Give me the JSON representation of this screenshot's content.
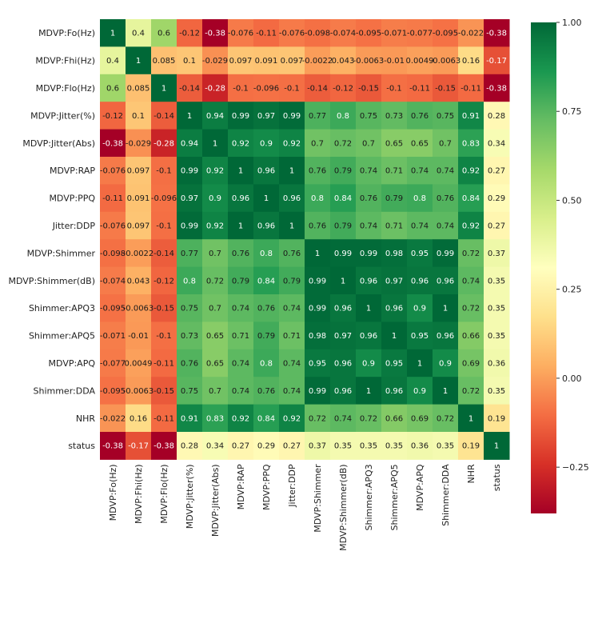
{
  "chart_data": {
    "type": "heatmap",
    "title": "",
    "xlabel": "",
    "ylabel": "",
    "colormap": "RdYlGn",
    "colormap_stops": [
      "#a50026",
      "#d73027",
      "#f46d43",
      "#fdae61",
      "#fee08b",
      "#ffffbf",
      "#d9ef8b",
      "#a6d96a",
      "#66bd63",
      "#1a9850",
      "#006837"
    ],
    "vmin": -0.38,
    "vmax": 1.0,
    "x_labels": [
      "MDVP:Fo(Hz)",
      "MDVP:Fhi(Hz)",
      "MDVP:Flo(Hz)",
      "MDVP:Jitter(%)",
      "MDVP:Jitter(Abs)",
      "MDVP:RAP",
      "MDVP:PPQ",
      "Jitter:DDP",
      "MDVP:Shimmer",
      "MDVP:Shimmer(dB)",
      "Shimmer:APQ3",
      "Shimmer:APQ5",
      "MDVP:APQ",
      "Shimmer:DDA",
      "NHR",
      "status"
    ],
    "y_labels": [
      "MDVP:Fo(Hz)",
      "MDVP:Fhi(Hz)",
      "MDVP:Flo(Hz)",
      "MDVP:Jitter(%)",
      "MDVP:Jitter(Abs)",
      "MDVP:RAP",
      "MDVP:PPQ",
      "Jitter:DDP",
      "MDVP:Shimmer",
      "MDVP:Shimmer(dB)",
      "Shimmer:APQ3",
      "Shimmer:APQ5",
      "MDVP:APQ",
      "Shimmer:DDA",
      "NHR",
      "status"
    ],
    "values": [
      [
        1,
        0.4,
        0.6,
        -0.12,
        -0.38,
        -0.076,
        -0.11,
        -0.076,
        -0.098,
        -0.074,
        -0.095,
        -0.071,
        -0.077,
        -0.095,
        -0.022,
        -0.38
      ],
      [
        0.4,
        1,
        0.085,
        0.1,
        -0.029,
        0.097,
        0.091,
        0.097,
        -0.0022,
        0.043,
        -0.0063,
        -0.01,
        0.0049,
        -0.0063,
        0.16,
        -0.17
      ],
      [
        0.6,
        0.085,
        1,
        -0.14,
        -0.28,
        -0.1,
        -0.096,
        -0.1,
        -0.14,
        -0.12,
        -0.15,
        -0.1,
        -0.11,
        -0.15,
        -0.11,
        -0.38
      ],
      [
        -0.12,
        0.1,
        -0.14,
        1,
        0.94,
        0.99,
        0.97,
        0.99,
        0.77,
        0.8,
        0.75,
        0.73,
        0.76,
        0.75,
        0.91,
        0.28
      ],
      [
        -0.38,
        -0.029,
        -0.28,
        0.94,
        1,
        0.92,
        0.9,
        0.92,
        0.7,
        0.72,
        0.7,
        0.65,
        0.65,
        0.7,
        0.83,
        0.34
      ],
      [
        -0.076,
        0.097,
        -0.1,
        0.99,
        0.92,
        1,
        0.96,
        1,
        0.76,
        0.79,
        0.74,
        0.71,
        0.74,
        0.74,
        0.92,
        0.27
      ],
      [
        -0.11,
        0.091,
        -0.096,
        0.97,
        0.9,
        0.96,
        1,
        0.96,
        0.8,
        0.84,
        0.76,
        0.79,
        0.8,
        0.76,
        0.84,
        0.29
      ],
      [
        -0.076,
        0.097,
        -0.1,
        0.99,
        0.92,
        1,
        0.96,
        1,
        0.76,
        0.79,
        0.74,
        0.71,
        0.74,
        0.74,
        0.92,
        0.27
      ],
      [
        -0.098,
        -0.0022,
        -0.14,
        0.77,
        0.7,
        0.76,
        0.8,
        0.76,
        1,
        0.99,
        0.99,
        0.98,
        0.95,
        0.99,
        0.72,
        0.37
      ],
      [
        -0.074,
        0.043,
        -0.12,
        0.8,
        0.72,
        0.79,
        0.84,
        0.79,
        0.99,
        1,
        0.96,
        0.97,
        0.96,
        0.96,
        0.74,
        0.35
      ],
      [
        -0.095,
        -0.0063,
        -0.15,
        0.75,
        0.7,
        0.74,
        0.76,
        0.74,
        0.99,
        0.96,
        1,
        0.96,
        0.9,
        1,
        0.72,
        0.35
      ],
      [
        -0.071,
        -0.01,
        -0.1,
        0.73,
        0.65,
        0.71,
        0.79,
        0.71,
        0.98,
        0.97,
        0.96,
        1,
        0.95,
        0.96,
        0.66,
        0.35
      ],
      [
        -0.077,
        0.0049,
        -0.11,
        0.76,
        0.65,
        0.74,
        0.8,
        0.74,
        0.95,
        0.96,
        0.9,
        0.95,
        1,
        0.9,
        0.69,
        0.36
      ],
      [
        -0.095,
        -0.0063,
        -0.15,
        0.75,
        0.7,
        0.74,
        0.76,
        0.74,
        0.99,
        0.96,
        1,
        0.96,
        0.9,
        1,
        0.72,
        0.35
      ],
      [
        -0.022,
        0.16,
        -0.11,
        0.91,
        0.83,
        0.92,
        0.84,
        0.92,
        0.72,
        0.74,
        0.72,
        0.66,
        0.69,
        0.72,
        1,
        0.19
      ],
      [
        -0.38,
        -0.17,
        -0.38,
        0.28,
        0.34,
        0.27,
        0.29,
        0.27,
        0.37,
        0.35,
        0.35,
        0.35,
        0.36,
        0.35,
        0.19,
        1
      ]
    ],
    "colorbar": {
      "ticks": [
        1.0,
        0.75,
        0.5,
        0.25,
        0.0,
        -0.25
      ],
      "tick_labels": [
        "1.00",
        "0.75",
        "0.50",
        "0.25",
        "0.00",
        "−0.25"
      ]
    },
    "legend": "colorbar-right",
    "grid": false
  }
}
